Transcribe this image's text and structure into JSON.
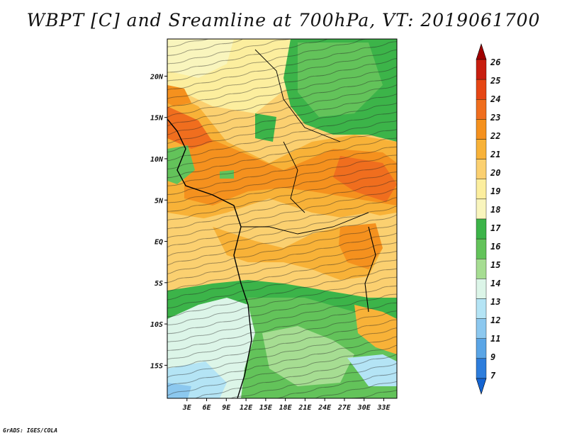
{
  "title": "WBPT [C] and Sreamline at 700hPa, VT: 2019061700",
  "credit": "GrADS: IGES/COLA",
  "chart_data": {
    "type": "heatmap",
    "variable": "Wet-bulb potential temperature at 700 hPa with streamlines",
    "region": "Africa",
    "lat_labels": [
      {
        "lat": 20,
        "label": "20N"
      },
      {
        "lat": 15,
        "label": "15N"
      },
      {
        "lat": 10,
        "label": "10N"
      },
      {
        "lat": 5,
        "label": "5N"
      },
      {
        "lat": 0,
        "label": "EQ"
      },
      {
        "lat": -5,
        "label": "5S"
      },
      {
        "lat": -10,
        "label": "10S"
      },
      {
        "lat": -15,
        "label": "15S"
      }
    ],
    "lon_labels": [
      {
        "lon": 3,
        "label": "3E"
      },
      {
        "lon": 6,
        "label": "6E"
      },
      {
        "lon": 9,
        "label": "9E"
      },
      {
        "lon": 12,
        "label": "12E"
      },
      {
        "lon": 15,
        "label": "15E"
      },
      {
        "lon": 18,
        "label": "18E"
      },
      {
        "lon": 21,
        "label": "21E"
      },
      {
        "lon": 24,
        "label": "24E"
      },
      {
        "lon": 27,
        "label": "27E"
      },
      {
        "lon": 30,
        "label": "30E"
      },
      {
        "lon": 33,
        "label": "33E"
      }
    ],
    "lat_range": [
      -19,
      24.5
    ],
    "lon_range": [
      0,
      35
    ],
    "colorbar": {
      "levels": [
        "26",
        "25",
        "24",
        "23",
        "22",
        "21",
        "20",
        "19",
        "18",
        "17",
        "16",
        "15",
        "14",
        "13",
        "12",
        "11",
        "9",
        "7"
      ],
      "colors": [
        "#a00000",
        "#c81e0f",
        "#e64614",
        "#f06e1e",
        "#f5911e",
        "#f8b238",
        "#fbd070",
        "#fcee9e",
        "#f9f5bd",
        "#3cb449",
        "#63c35a",
        "#a6dd92",
        "#dcf5e8",
        "#b4e4f5",
        "#8cc8ef",
        "#5aa5e6",
        "#2d7ddc",
        "#1464d2"
      ],
      "extend": "both"
    },
    "streamlines": true
  }
}
